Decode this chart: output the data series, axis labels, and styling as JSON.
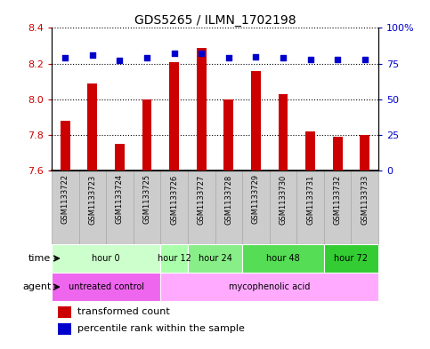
{
  "title": "GDS5265 / ILMN_1702198",
  "samples": [
    "GSM1133722",
    "GSM1133723",
    "GSM1133724",
    "GSM1133725",
    "GSM1133726",
    "GSM1133727",
    "GSM1133728",
    "GSM1133729",
    "GSM1133730",
    "GSM1133731",
    "GSM1133732",
    "GSM1133733"
  ],
  "bar_values": [
    7.88,
    8.09,
    7.75,
    8.0,
    8.21,
    8.29,
    8.0,
    8.16,
    8.03,
    7.82,
    7.79,
    7.8
  ],
  "percentile_values": [
    79,
    81,
    77,
    79,
    82,
    82,
    79,
    80,
    79,
    78,
    78,
    78
  ],
  "ylim": [
    7.6,
    8.4
  ],
  "yticks": [
    7.6,
    7.8,
    8.0,
    8.2,
    8.4
  ],
  "y2ticks": [
    0,
    25,
    50,
    75,
    100
  ],
  "y2labels": [
    "0",
    "25",
    "50",
    "75",
    "100%"
  ],
  "bar_color": "#cc0000",
  "dot_color": "#0000cc",
  "time_groups": [
    {
      "label": "hour 0",
      "start": 0,
      "end": 3,
      "color": "#ccffcc"
    },
    {
      "label": "hour 12",
      "start": 4,
      "end": 4,
      "color": "#aaffaa"
    },
    {
      "label": "hour 24",
      "start": 5,
      "end": 6,
      "color": "#88ee88"
    },
    {
      "label": "hour 48",
      "start": 7,
      "end": 9,
      "color": "#55dd55"
    },
    {
      "label": "hour 72",
      "start": 10,
      "end": 11,
      "color": "#33cc33"
    }
  ],
  "agent_groups": [
    {
      "label": "untreated control",
      "start": 0,
      "end": 3,
      "color": "#ee66ee"
    },
    {
      "label": "mycophenolic acid",
      "start": 4,
      "end": 11,
      "color": "#ffaaff"
    }
  ],
  "legend_bar_label": "transformed count",
  "legend_dot_label": "percentile rank within the sample",
  "label_time": "time",
  "label_agent": "agent",
  "bg_color": "#ffffff",
  "sample_bg_color": "#cccccc",
  "sample_border_color": "#aaaaaa"
}
